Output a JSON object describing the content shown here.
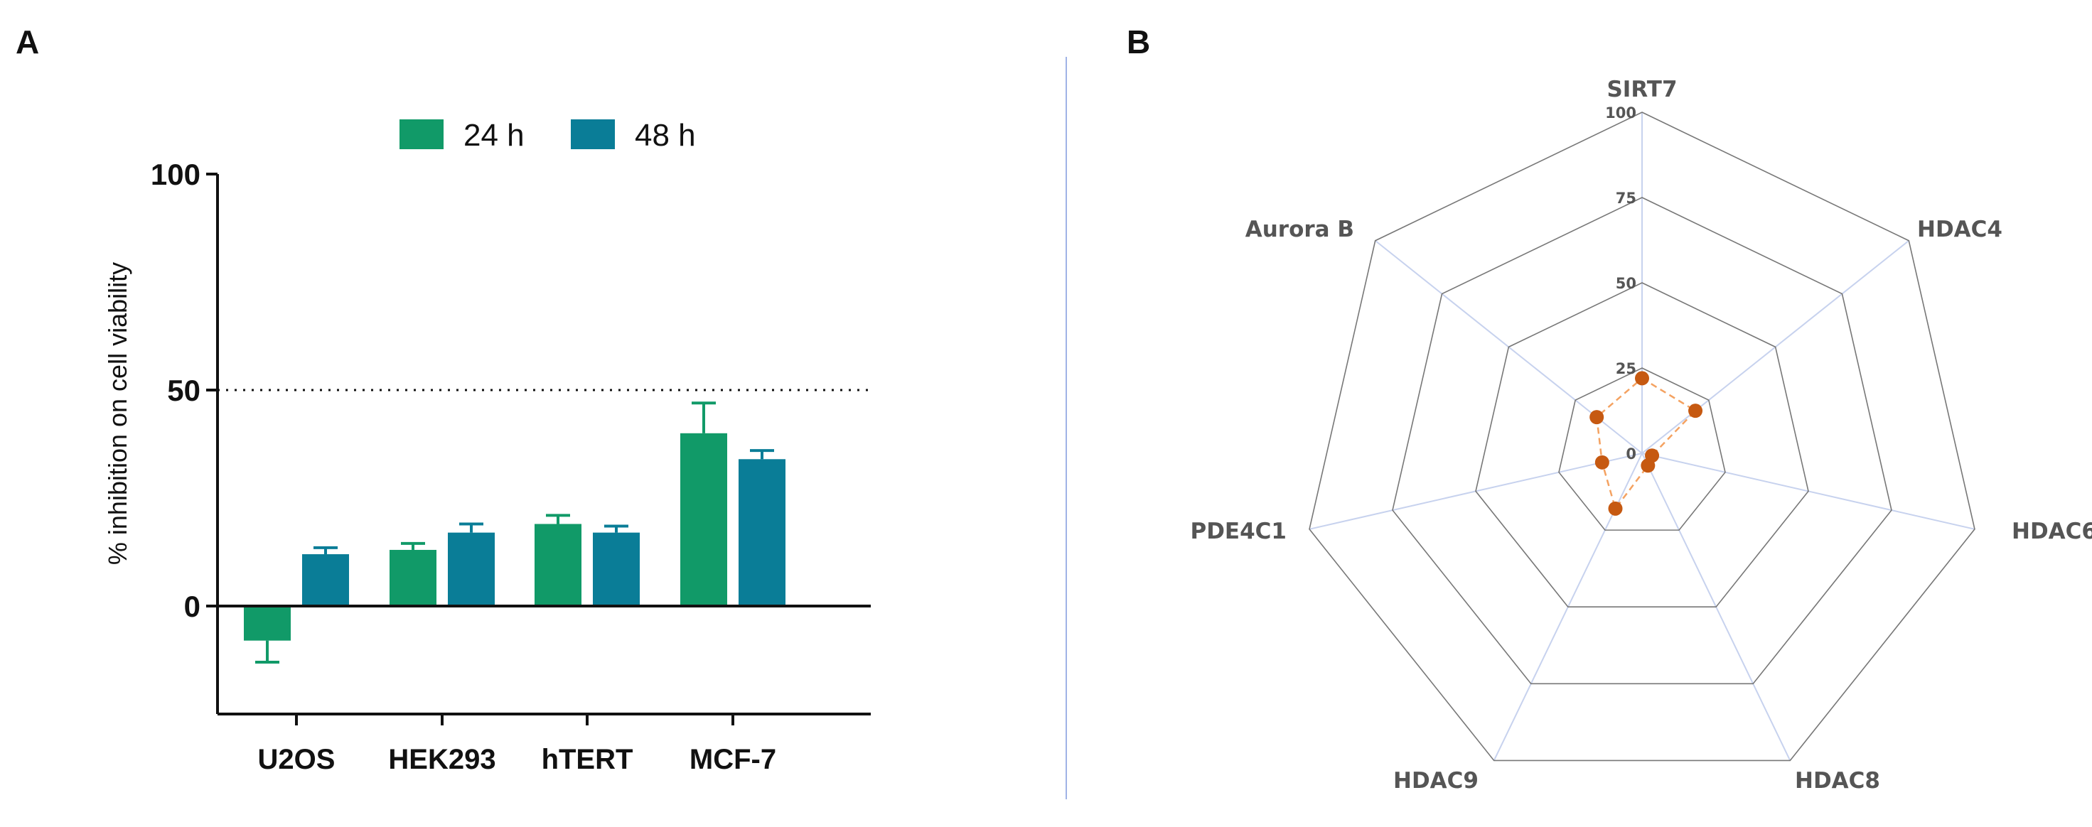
{
  "panels": {
    "a": "A",
    "b": "B"
  },
  "chart_data": [
    {
      "type": "bar",
      "panel": "A",
      "categories": [
        "U2OS",
        "HEK293",
        "hTERT",
        "MCF-7"
      ],
      "series": [
        {
          "name": "24 h",
          "values": [
            -8,
            13,
            19,
            40
          ],
          "errors": [
            5,
            1.5,
            2,
            7
          ],
          "color": "#119a68"
        },
        {
          "name": "48 h",
          "values": [
            12,
            17,
            17,
            34
          ],
          "errors": [
            1.5,
            2,
            1.5,
            2
          ],
          "color": "#0a7d97"
        }
      ],
      "ylabel": "% inhibition on cell viability",
      "yticks": [
        0,
        50,
        100
      ],
      "ylim": [
        -25,
        100
      ],
      "reference_line": 50,
      "legend": "top"
    },
    {
      "type": "radar",
      "panel": "B",
      "axes": [
        "SIRT7",
        "HDAC4",
        "HDAC6",
        "HDAC8",
        "HDAC9",
        "PDE4C1",
        "Aurora B"
      ],
      "values": [
        22,
        20,
        3,
        4,
        18,
        12,
        17
      ],
      "rings": [
        0,
        25,
        50,
        75,
        100
      ],
      "range": [
        0,
        100
      ],
      "point_color": "#c65911",
      "line_color": "#f4a261"
    }
  ]
}
